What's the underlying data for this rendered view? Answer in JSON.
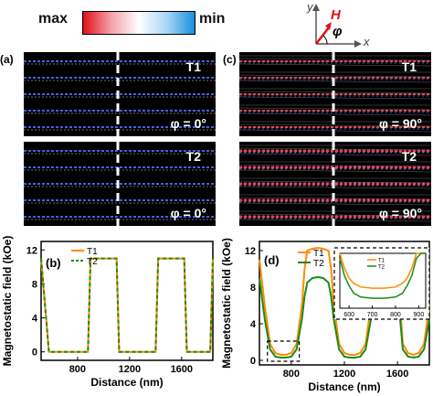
{
  "colorbar": {
    "max_label": "max",
    "min_label": "min"
  },
  "axes_icon": {
    "y": "y",
    "x": "x",
    "h": "H",
    "phi": "φ"
  },
  "panels": {
    "a": {
      "label": "(a)",
      "top_tag": "T1",
      "top_angle": "φ = 0°",
      "bottom_tag": "T2",
      "bottom_angle": "φ = 0°"
    },
    "c": {
      "label": "(c)",
      "top_tag": "T1",
      "top_angle": "φ = 90°",
      "bottom_tag": "T2",
      "bottom_angle": "φ = 90°"
    }
  },
  "chart_data": [
    {
      "panel": "(b)",
      "type": "line",
      "xlabel": "Distance (nm)",
      "ylabel": "Magnetostatic field (kOe)",
      "xlim": [
        520,
        1840
      ],
      "ylim": [
        -1,
        13
      ],
      "xticks": [
        800,
        1200,
        1600
      ],
      "yticks": [
        0,
        4,
        8,
        12
      ],
      "legend_position": "top-left",
      "series": [
        {
          "name": "T1",
          "color": "#ff8c00",
          "style": "solid",
          "x": [
            520,
            580,
            880,
            900,
            1100,
            1120,
            1400,
            1420,
            1620,
            1640,
            1820,
            1840
          ],
          "y": [
            11,
            0,
            0,
            11,
            11,
            0,
            0,
            11,
            11,
            0,
            0,
            11
          ]
        },
        {
          "name": "T2",
          "color": "#1a8a1a",
          "style": "dashed",
          "x": [
            520,
            580,
            880,
            900,
            1100,
            1120,
            1400,
            1420,
            1620,
            1640,
            1820,
            1840
          ],
          "y": [
            11,
            0,
            0,
            11,
            11,
            0,
            0,
            11,
            11,
            0,
            0,
            11
          ]
        }
      ]
    },
    {
      "panel": "(d)",
      "type": "line",
      "xlabel": "Distance (nm)",
      "ylabel": "Magnetostatic field (kOe)",
      "xlim": [
        560,
        1840
      ],
      "ylim": [
        -0.5,
        13
      ],
      "xticks": [
        800,
        1200,
        1600
      ],
      "yticks": [
        0,
        4,
        8,
        12
      ],
      "legend_position": "top-center",
      "series": [
        {
          "name": "T1",
          "color": "#ff8c00",
          "style": "solid",
          "x": [
            560,
            600,
            640,
            680,
            720,
            760,
            800,
            840,
            880,
            900,
            920,
            960,
            1000,
            1040,
            1080,
            1100,
            1120,
            1160,
            1200,
            1240,
            1280,
            1320,
            1360,
            1400,
            1420,
            1440,
            1480,
            1520,
            1560,
            1600,
            1620,
            1640,
            1680,
            1720,
            1760,
            1800,
            1840
          ],
          "y": [
            11,
            6,
            1.8,
            0.8,
            0.6,
            0.6,
            0.8,
            1.8,
            6,
            10,
            12,
            12.2,
            12.3,
            12.2,
            12,
            10,
            6,
            1.8,
            0.8,
            0.6,
            0.6,
            0.8,
            1.8,
            6,
            10,
            12,
            12.2,
            12.2,
            12,
            10,
            6,
            1.8,
            0.8,
            0.6,
            0.8,
            1.8,
            6
          ]
        },
        {
          "name": "T2",
          "color": "#1a8a1a",
          "style": "solid",
          "x": [
            560,
            600,
            640,
            680,
            720,
            760,
            800,
            840,
            880,
            900,
            920,
            960,
            1000,
            1040,
            1080,
            1100,
            1120,
            1160,
            1200,
            1240,
            1280,
            1320,
            1360,
            1400,
            1420,
            1440,
            1480,
            1520,
            1560,
            1600,
            1620,
            1640,
            1680,
            1720,
            1760,
            1800,
            1840
          ],
          "y": [
            9,
            4.5,
            1.2,
            0.4,
            0.3,
            0.3,
            0.4,
            1.2,
            4.5,
            7,
            8.5,
            9,
            9.1,
            9,
            8.5,
            7,
            4.5,
            1.2,
            0.4,
            0.3,
            0.3,
            0.4,
            1.2,
            4.5,
            7,
            8.5,
            9,
            9,
            8.5,
            7,
            4.5,
            1.2,
            0.4,
            0.3,
            0.4,
            1.2,
            4.5
          ]
        }
      ]
    },
    {
      "panel": "(d) inset",
      "type": "line",
      "xlim": [
        560,
        930
      ],
      "ylim": [
        0,
        2.2
      ],
      "xticks": [
        600,
        700,
        800,
        900
      ],
      "legend_position": "top-center",
      "series": [
        {
          "name": "T1",
          "color": "#ff8c00",
          "style": "solid",
          "x": [
            560,
            580,
            600,
            620,
            650,
            700,
            750,
            800,
            830,
            850,
            870,
            890,
            910,
            930
          ],
          "y": [
            2.2,
            1.6,
            1.2,
            1.0,
            0.85,
            0.8,
            0.8,
            0.85,
            1.0,
            1.2,
            1.6,
            2.2,
            2.2,
            2.2
          ]
        },
        {
          "name": "T2",
          "color": "#1a8a1a",
          "style": "solid",
          "x": [
            560,
            580,
            600,
            620,
            650,
            700,
            750,
            800,
            830,
            850,
            870,
            890,
            910,
            930
          ],
          "y": [
            2.0,
            1.3,
            0.9,
            0.6,
            0.45,
            0.4,
            0.4,
            0.45,
            0.6,
            0.9,
            1.3,
            2.0,
            2.2,
            2.2
          ]
        }
      ]
    }
  ]
}
